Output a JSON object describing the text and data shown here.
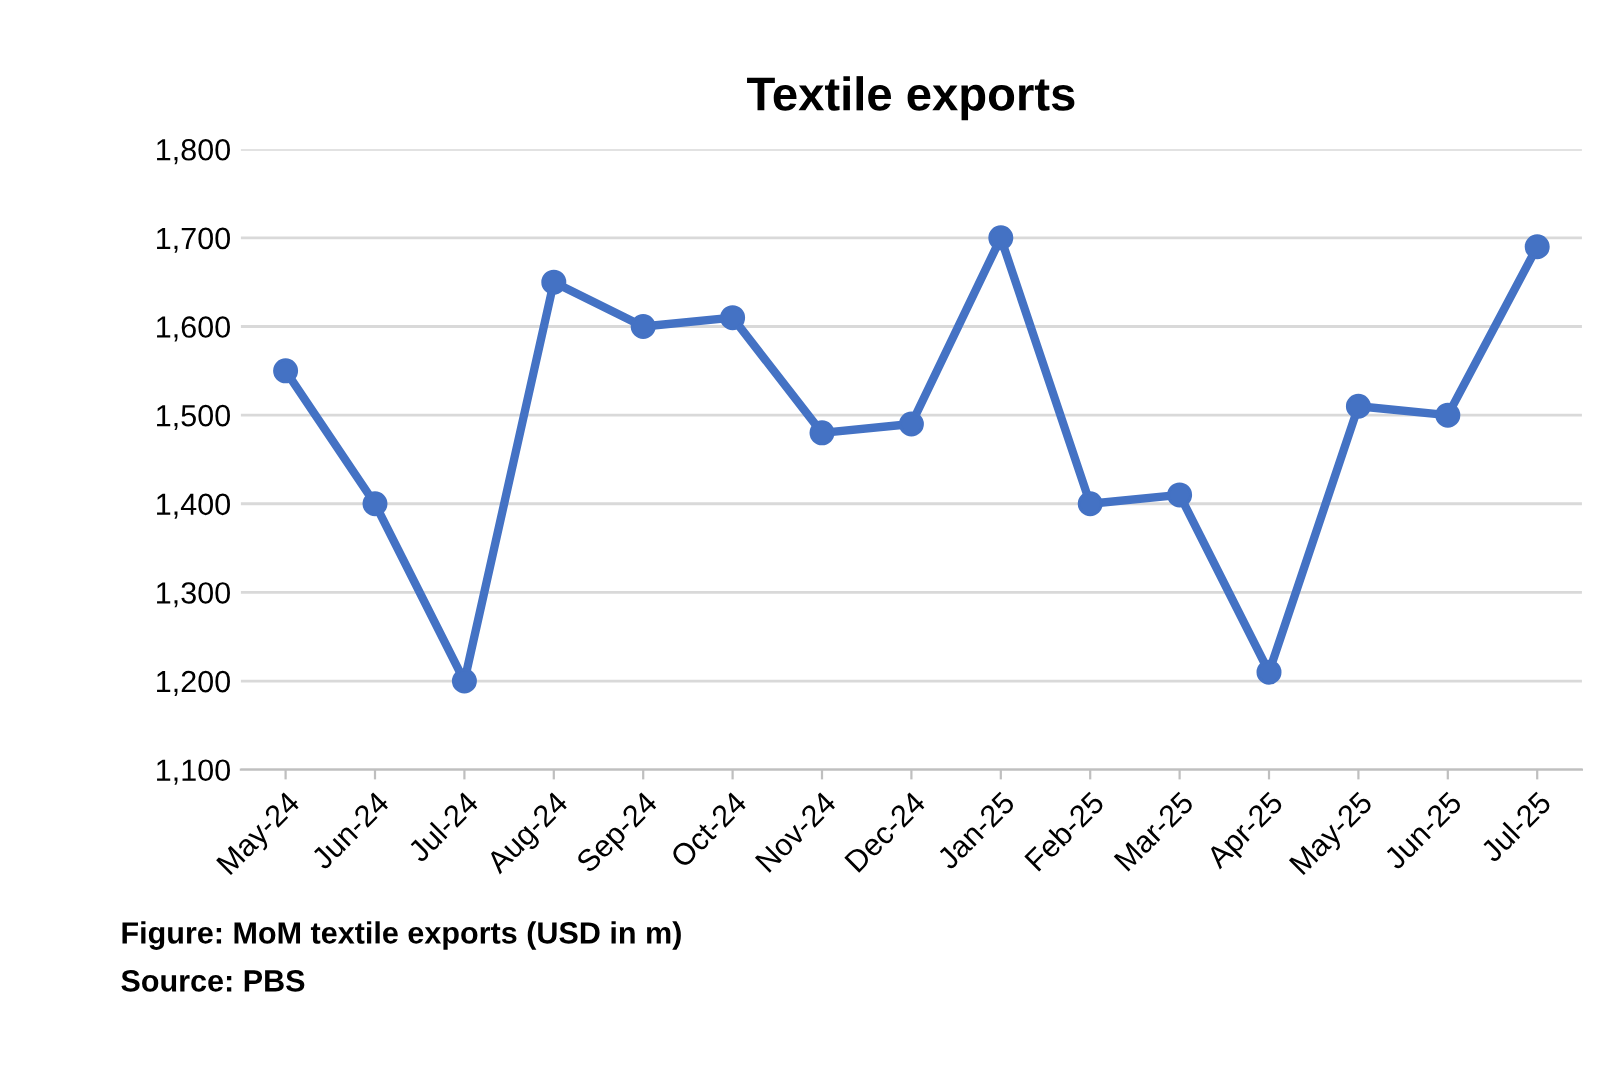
{
  "chart_data": {
    "type": "line",
    "title": "Textile exports",
    "categories": [
      "May-24",
      "Jun-24",
      "Jul-24",
      "Aug-24",
      "Sep-24",
      "Oct-24",
      "Nov-24",
      "Dec-24",
      "Jan-25",
      "Feb-25",
      "Mar-25",
      "Apr-25",
      "May-25",
      "Jun-25",
      "Jul-25"
    ],
    "series": [
      {
        "color": "#4472c4",
        "values": [
          1550,
          1400,
          1200,
          1650,
          1600,
          1610,
          1480,
          1490,
          1700,
          1400,
          1410,
          1210,
          1510,
          1500,
          1690
        ]
      }
    ],
    "ylim": [
      1100,
      1800
    ],
    "yticks": [
      {
        "value": 1100,
        "label": "1,100"
      },
      {
        "value": 1200,
        "label": "1,200"
      },
      {
        "value": 1300,
        "label": "1,300"
      },
      {
        "value": 1400,
        "label": "1,400"
      },
      {
        "value": 1500,
        "label": "1,500"
      },
      {
        "value": 1600,
        "label": "1,600"
      },
      {
        "value": 1700,
        "label": "1,700"
      },
      {
        "value": 1800,
        "label": "1,800"
      }
    ],
    "grid": "y",
    "marker": "circle",
    "line_style": "solid",
    "annotations": [
      "Figure: MoM textile exports (USD in m)",
      "Source: PBS"
    ]
  }
}
